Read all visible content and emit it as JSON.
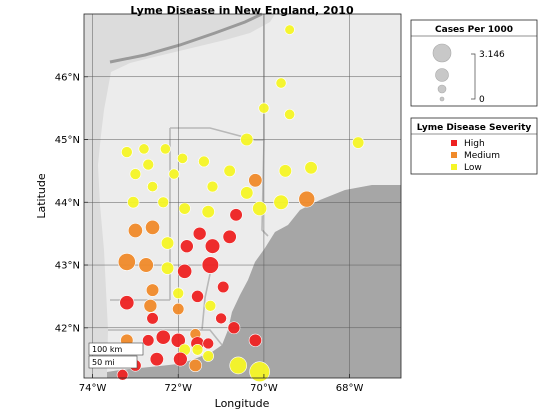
{
  "chart_data": {
    "type": "scatter",
    "title": "Lyme Disease in New England, 2010",
    "xlabel": "Longitude",
    "ylabel": "Latitude",
    "xlim": [
      -74.2,
      -66.8
    ],
    "ylim": [
      41.2,
      47.0
    ],
    "x_ticks": [
      {
        "value": -74,
        "label": "74°W"
      },
      {
        "value": -72,
        "label": "72°W"
      },
      {
        "value": -70,
        "label": "70°W"
      },
      {
        "value": -68,
        "label": "68°W"
      }
    ],
    "y_ticks": [
      {
        "value": 42,
        "label": "42°N"
      },
      {
        "value": 43,
        "label": "43°N"
      },
      {
        "value": 44,
        "label": "44°N"
      },
      {
        "value": 45,
        "label": "45°N"
      },
      {
        "value": 46,
        "label": "46°N"
      }
    ],
    "grid": true,
    "size_legend": {
      "title": "Cases Per 1000",
      "max_label": "3.146",
      "min_label": "0",
      "placement": "outside-right"
    },
    "color_legend": {
      "title": "Lyme Disease Severity",
      "placement": "outside-right",
      "entries": [
        {
          "label": "High",
          "color": "#ee2222"
        },
        {
          "label": "Medium",
          "color": "#f08a2a"
        },
        {
          "label": "Low",
          "color": "#f5f526"
        }
      ]
    },
    "scale_bar": {
      "km_label": "100 km",
      "mi_label": "50 mi"
    },
    "points": [
      {
        "lon": -69.4,
        "lat": 46.75,
        "cases": 0.3,
        "severity": "Low"
      },
      {
        "lon": -69.6,
        "lat": 45.9,
        "cases": 0.4,
        "severity": "Low"
      },
      {
        "lon": -70.0,
        "lat": 45.5,
        "cases": 0.4,
        "severity": "Low"
      },
      {
        "lon": -69.4,
        "lat": 45.4,
        "cases": 0.4,
        "severity": "Low"
      },
      {
        "lon": -70.4,
        "lat": 45.0,
        "cases": 0.8,
        "severity": "Low"
      },
      {
        "lon": -67.8,
        "lat": 44.95,
        "cases": 0.6,
        "severity": "Low"
      },
      {
        "lon": -73.2,
        "lat": 44.8,
        "cases": 0.5,
        "severity": "Low"
      },
      {
        "lon": -72.8,
        "lat": 44.85,
        "cases": 0.4,
        "severity": "Low"
      },
      {
        "lon": -72.3,
        "lat": 44.85,
        "cases": 0.4,
        "severity": "Low"
      },
      {
        "lon": -71.9,
        "lat": 44.7,
        "cases": 0.4,
        "severity": "Low"
      },
      {
        "lon": -71.4,
        "lat": 44.65,
        "cases": 0.5,
        "severity": "Low"
      },
      {
        "lon": -72.7,
        "lat": 44.6,
        "cases": 0.5,
        "severity": "Low"
      },
      {
        "lon": -73.0,
        "lat": 44.45,
        "cases": 0.5,
        "severity": "Low"
      },
      {
        "lon": -72.1,
        "lat": 44.45,
        "cases": 0.4,
        "severity": "Low"
      },
      {
        "lon": -70.8,
        "lat": 44.5,
        "cases": 0.6,
        "severity": "Low"
      },
      {
        "lon": -70.2,
        "lat": 44.35,
        "cases": 1.0,
        "severity": "Medium"
      },
      {
        "lon": -69.5,
        "lat": 44.5,
        "cases": 0.8,
        "severity": "Low"
      },
      {
        "lon": -68.9,
        "lat": 44.55,
        "cases": 0.8,
        "severity": "Low"
      },
      {
        "lon": -72.6,
        "lat": 44.25,
        "cases": 0.4,
        "severity": "Low"
      },
      {
        "lon": -71.2,
        "lat": 44.25,
        "cases": 0.5,
        "severity": "Low"
      },
      {
        "lon": -70.4,
        "lat": 44.15,
        "cases": 0.8,
        "severity": "Low"
      },
      {
        "lon": -73.05,
        "lat": 44.0,
        "cases": 0.6,
        "severity": "Low"
      },
      {
        "lon": -72.35,
        "lat": 44.0,
        "cases": 0.5,
        "severity": "Low"
      },
      {
        "lon": -71.85,
        "lat": 43.9,
        "cases": 0.6,
        "severity": "Low"
      },
      {
        "lon": -71.3,
        "lat": 43.85,
        "cases": 0.8,
        "severity": "Low"
      },
      {
        "lon": -70.65,
        "lat": 43.8,
        "cases": 0.8,
        "severity": "High"
      },
      {
        "lon": -70.1,
        "lat": 43.9,
        "cases": 1.2,
        "severity": "Low"
      },
      {
        "lon": -69.6,
        "lat": 44.0,
        "cases": 1.3,
        "severity": "Low"
      },
      {
        "lon": -69.0,
        "lat": 44.05,
        "cases": 1.7,
        "severity": "Medium"
      },
      {
        "lon": -73.0,
        "lat": 43.55,
        "cases": 1.2,
        "severity": "Medium"
      },
      {
        "lon": -72.6,
        "lat": 43.6,
        "cases": 1.2,
        "severity": "Medium"
      },
      {
        "lon": -71.5,
        "lat": 43.5,
        "cases": 0.9,
        "severity": "High"
      },
      {
        "lon": -72.25,
        "lat": 43.35,
        "cases": 0.8,
        "severity": "Low"
      },
      {
        "lon": -71.8,
        "lat": 43.3,
        "cases": 0.9,
        "severity": "High"
      },
      {
        "lon": -71.2,
        "lat": 43.3,
        "cases": 1.3,
        "severity": "High"
      },
      {
        "lon": -70.8,
        "lat": 43.45,
        "cases": 1.0,
        "severity": "High"
      },
      {
        "lon": -73.2,
        "lat": 43.05,
        "cases": 2.1,
        "severity": "Medium"
      },
      {
        "lon": -72.75,
        "lat": 43.0,
        "cases": 1.3,
        "severity": "Medium"
      },
      {
        "lon": -72.25,
        "lat": 42.95,
        "cases": 0.8,
        "severity": "Low"
      },
      {
        "lon": -71.85,
        "lat": 42.9,
        "cases": 1.2,
        "severity": "High"
      },
      {
        "lon": -71.25,
        "lat": 43.0,
        "cases": 1.9,
        "severity": "High"
      },
      {
        "lon": -72.6,
        "lat": 42.6,
        "cases": 0.8,
        "severity": "Medium"
      },
      {
        "lon": -72.0,
        "lat": 42.55,
        "cases": 0.5,
        "severity": "Low"
      },
      {
        "lon": -71.55,
        "lat": 42.5,
        "cases": 0.7,
        "severity": "High"
      },
      {
        "lon": -70.95,
        "lat": 42.65,
        "cases": 0.6,
        "severity": "High"
      },
      {
        "lon": -73.2,
        "lat": 42.4,
        "cases": 1.2,
        "severity": "High"
      },
      {
        "lon": -72.65,
        "lat": 42.35,
        "cases": 0.9,
        "severity": "Medium"
      },
      {
        "lon": -72.0,
        "lat": 42.3,
        "cases": 0.6,
        "severity": "Medium"
      },
      {
        "lon": -71.25,
        "lat": 42.35,
        "cases": 0.5,
        "severity": "Low"
      },
      {
        "lon": -72.6,
        "lat": 42.15,
        "cases": 0.6,
        "severity": "High"
      },
      {
        "lon": -71.0,
        "lat": 42.15,
        "cases": 0.5,
        "severity": "High"
      },
      {
        "lon": -70.7,
        "lat": 42.0,
        "cases": 0.7,
        "severity": "High"
      },
      {
        "lon": -73.2,
        "lat": 41.8,
        "cases": 0.8,
        "severity": "Medium"
      },
      {
        "lon": -72.7,
        "lat": 41.8,
        "cases": 0.6,
        "severity": "High"
      },
      {
        "lon": -72.35,
        "lat": 41.85,
        "cases": 1.2,
        "severity": "High"
      },
      {
        "lon": -72.0,
        "lat": 41.8,
        "cases": 1.2,
        "severity": "High"
      },
      {
        "lon": -71.6,
        "lat": 41.9,
        "cases": 0.5,
        "severity": "Medium"
      },
      {
        "lon": -71.55,
        "lat": 41.75,
        "cases": 1.0,
        "severity": "High"
      },
      {
        "lon": -71.3,
        "lat": 41.75,
        "cases": 0.5,
        "severity": "High"
      },
      {
        "lon": -71.55,
        "lat": 41.65,
        "cases": 0.5,
        "severity": "Low"
      },
      {
        "lon": -71.85,
        "lat": 41.65,
        "cases": 0.6,
        "severity": "Low"
      },
      {
        "lon": -70.2,
        "lat": 41.8,
        "cases": 0.8,
        "severity": "High"
      },
      {
        "lon": -71.3,
        "lat": 41.55,
        "cases": 0.5,
        "severity": "Low"
      },
      {
        "lon": -72.5,
        "lat": 41.5,
        "cases": 1.0,
        "severity": "High"
      },
      {
        "lon": -71.95,
        "lat": 41.5,
        "cases": 1.1,
        "severity": "High"
      },
      {
        "lon": -71.6,
        "lat": 41.4,
        "cases": 0.8,
        "severity": "Medium"
      },
      {
        "lon": -73.0,
        "lat": 41.4,
        "cases": 0.6,
        "severity": "High"
      },
      {
        "lon": -73.3,
        "lat": 41.25,
        "cases": 0.5,
        "severity": "High"
      },
      {
        "lon": -70.6,
        "lat": 41.4,
        "cases": 2.0,
        "severity": "Low"
      },
      {
        "lon": -70.1,
        "lat": 41.3,
        "cases": 3.146,
        "severity": "Low"
      }
    ]
  }
}
